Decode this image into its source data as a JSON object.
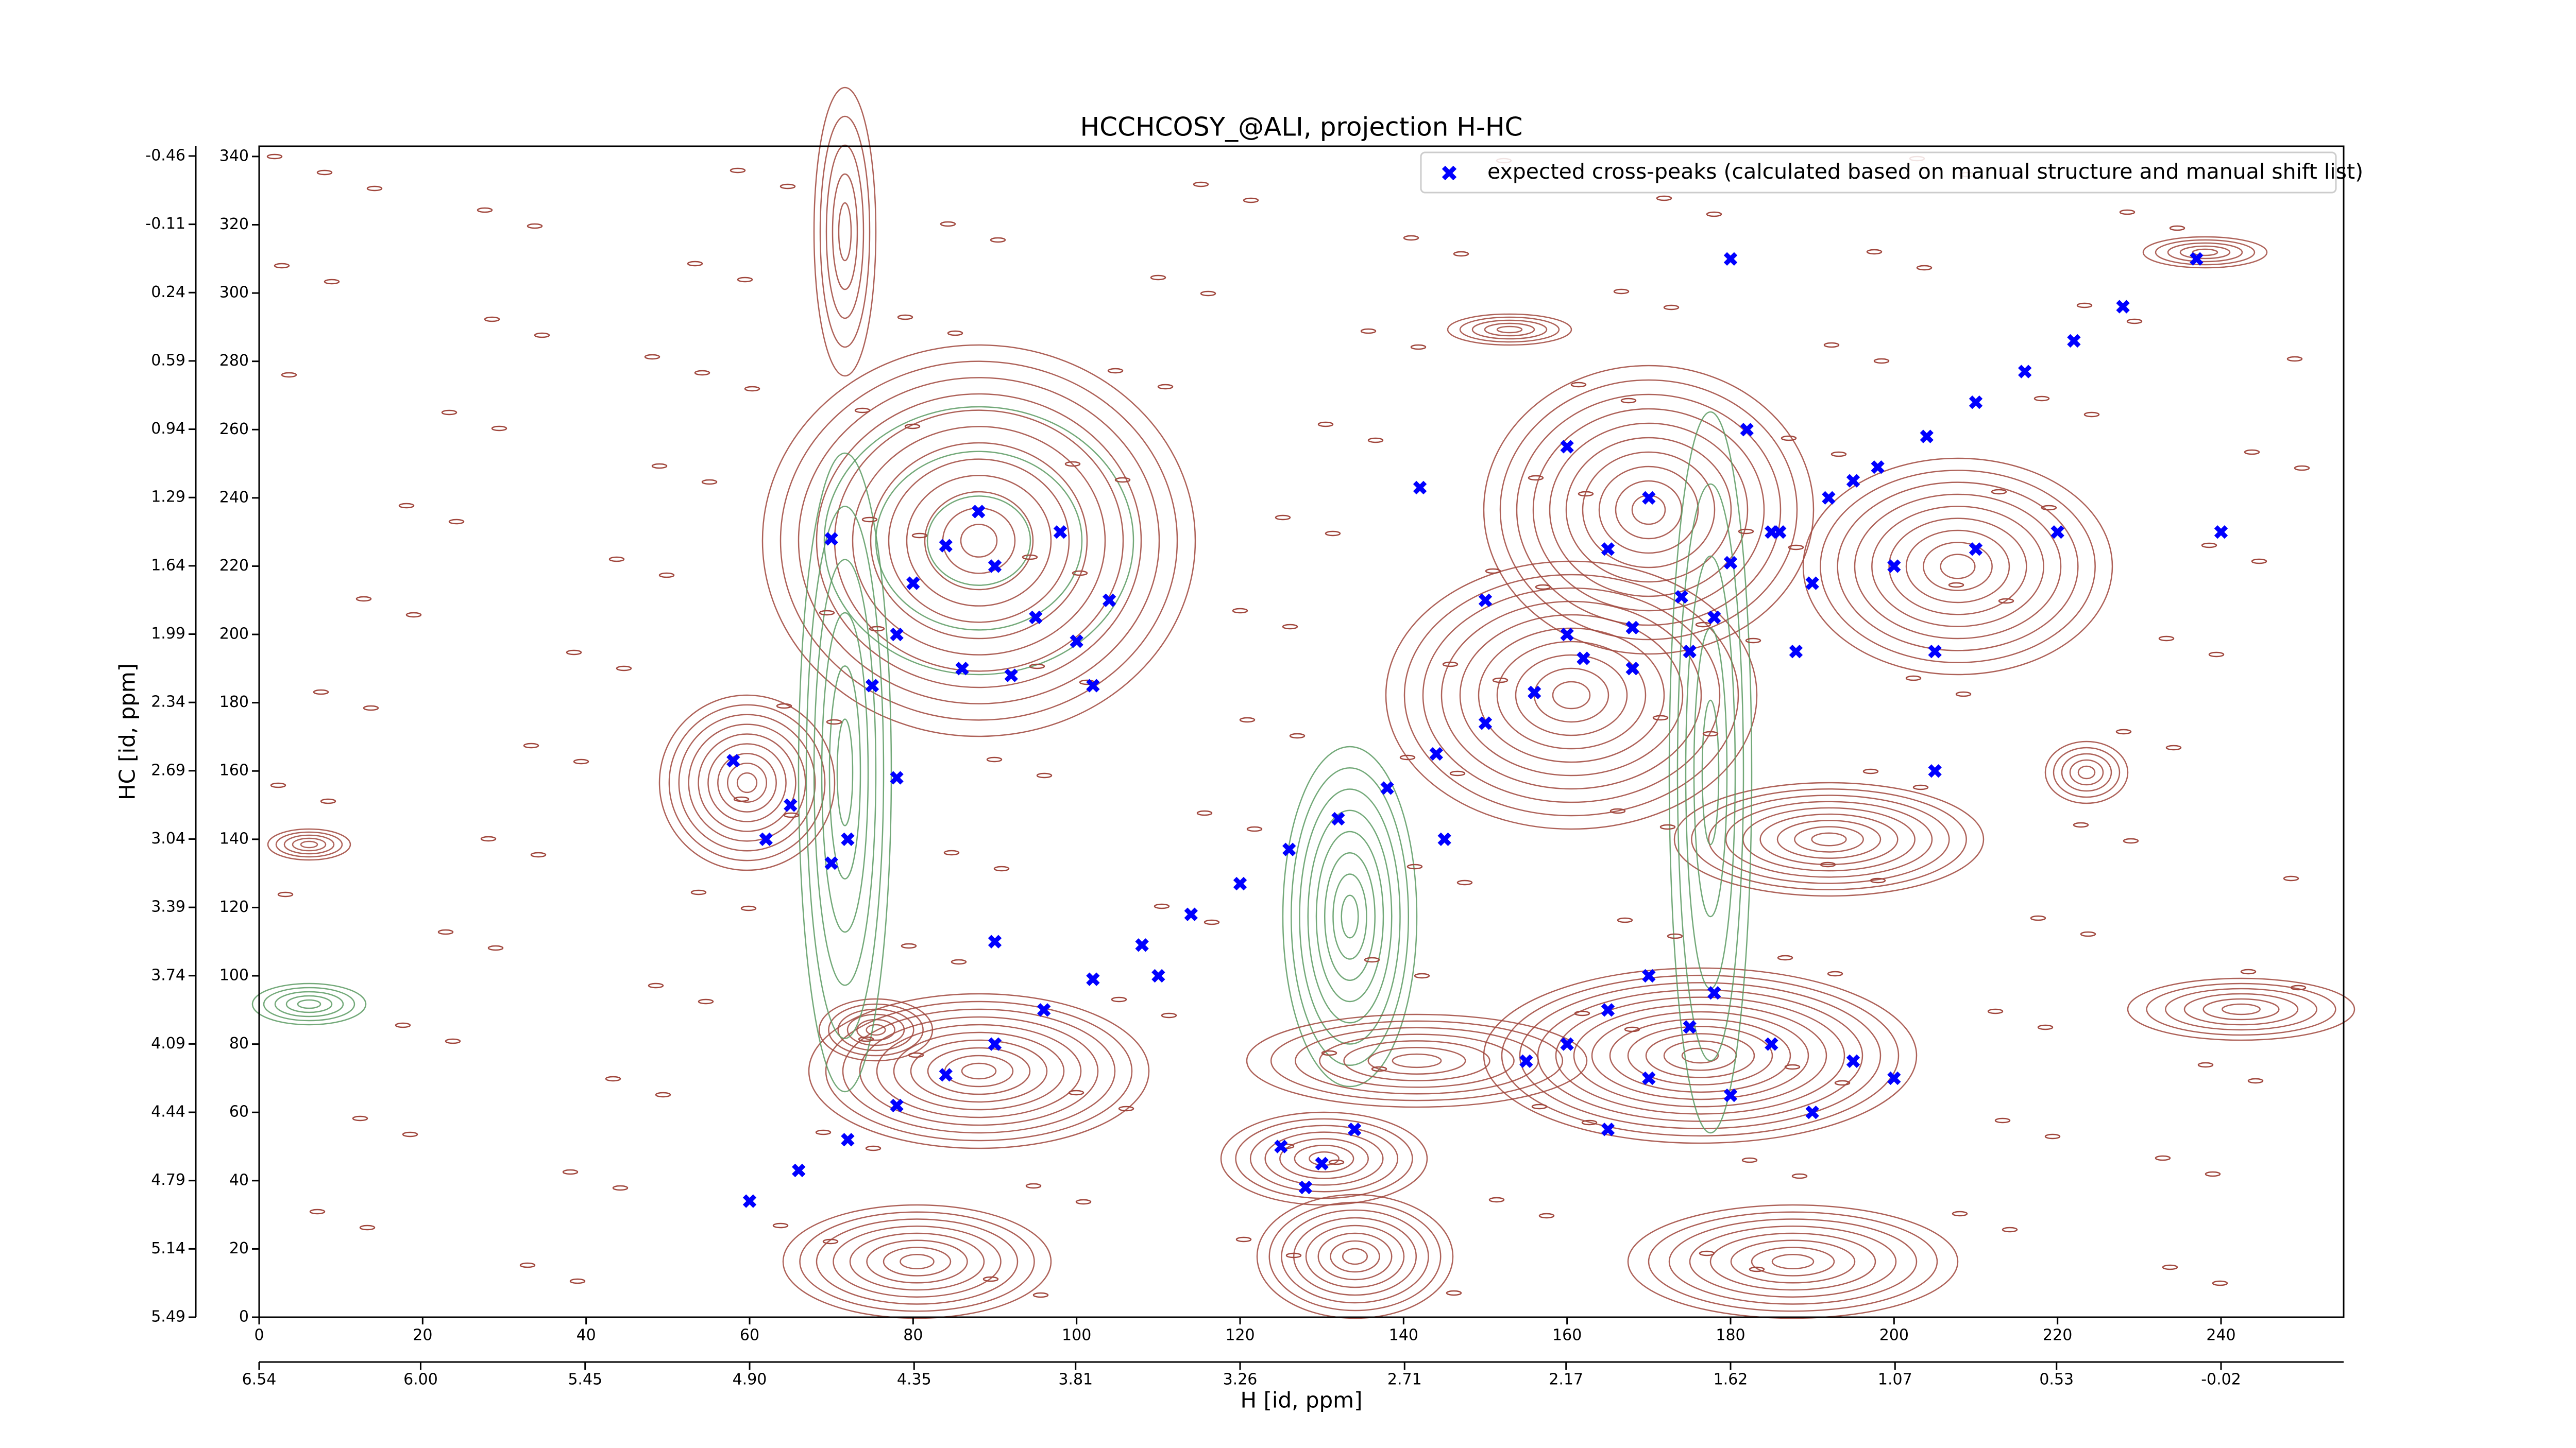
{
  "chart_data": {
    "type": "scatter",
    "title": "HCCHCOSY_@ALI, projection H-HC",
    "x_label": "H [id, ppm]",
    "y_label": "HC [id, ppm]",
    "legend": "upper right",
    "xlim": [
      0,
      255
    ],
    "xticks": [
      0,
      20,
      40,
      60,
      80,
      100,
      120,
      140,
      160,
      180,
      200,
      220,
      240
    ],
    "x2lim": [
      6.54,
      -0.43
    ],
    "x2ticks": [
      6.54,
      {
        "value": 6.0,
        "label": "6.00"
      },
      5.45,
      {
        "value": 4.9,
        "label": "4.90"
      },
      4.35,
      3.81,
      3.26,
      2.71,
      2.17,
      1.62,
      1.07,
      0.53,
      -0.02
    ],
    "ylim": [
      0,
      343
    ],
    "yticks": [
      0,
      20,
      40,
      60,
      80,
      100,
      120,
      140,
      160,
      180,
      200,
      220,
      240,
      260,
      280,
      300,
      320,
      340
    ],
    "y2lim": [
      5.49,
      -0.51
    ],
    "y2ticks": [
      5.49,
      5.14,
      4.79,
      4.44,
      4.09,
      3.74,
      3.39,
      3.04,
      2.69,
      2.34,
      1.99,
      1.64,
      1.29,
      0.94,
      0.59,
      0.24,
      -0.11,
      -0.46
    ],
    "x": [
      60,
      66,
      72,
      78,
      84,
      90,
      96,
      102,
      108,
      114,
      120,
      126,
      132,
      138,
      144,
      150,
      156,
      162,
      168,
      174,
      180,
      186,
      192,
      198,
      204,
      210,
      216,
      222,
      228,
      80,
      84,
      90,
      95,
      100,
      86,
      78,
      92,
      104,
      70,
      98,
      88,
      75,
      102,
      150,
      160,
      165,
      170,
      178,
      185,
      190,
      175,
      160,
      182,
      195,
      200,
      210,
      220,
      205,
      188,
      168,
      155,
      160,
      165,
      170,
      175,
      180,
      185,
      190,
      195,
      170,
      165,
      200,
      178,
      58,
      65,
      72,
      78,
      70,
      62,
      125,
      130,
      134,
      128,
      205,
      145,
      240,
      237,
      180,
      142,
      90,
      110
    ],
    "series": [
      {
        "name": "expected cross-peaks (calculated based on manual structure and manual shift list)",
        "color": "#0000ff",
        "values": [
          34,
          43,
          52,
          62,
          71,
          80,
          90,
          99,
          109,
          118,
          127,
          137,
          146,
          155,
          165,
          174,
          183,
          193,
          202,
          211,
          221,
          230,
          240,
          249,
          258,
          268,
          277,
          286,
          296,
          215,
          226,
          220,
          205,
          198,
          190,
          200,
          188,
          210,
          228,
          230,
          236,
          185,
          185,
          210,
          200,
          225,
          240,
          205,
          230,
          215,
          195,
          255,
          260,
          245,
          220,
          225,
          230,
          195,
          195,
          190,
          75,
          80,
          90,
          70,
          85,
          65,
          80,
          60,
          75,
          100,
          55,
          70,
          95,
          163,
          150,
          140,
          158,
          133,
          140,
          50,
          45,
          55,
          38,
          160,
          140,
          230,
          310,
          310,
          243,
          110,
          100
        ]
      }
    ]
  }
}
